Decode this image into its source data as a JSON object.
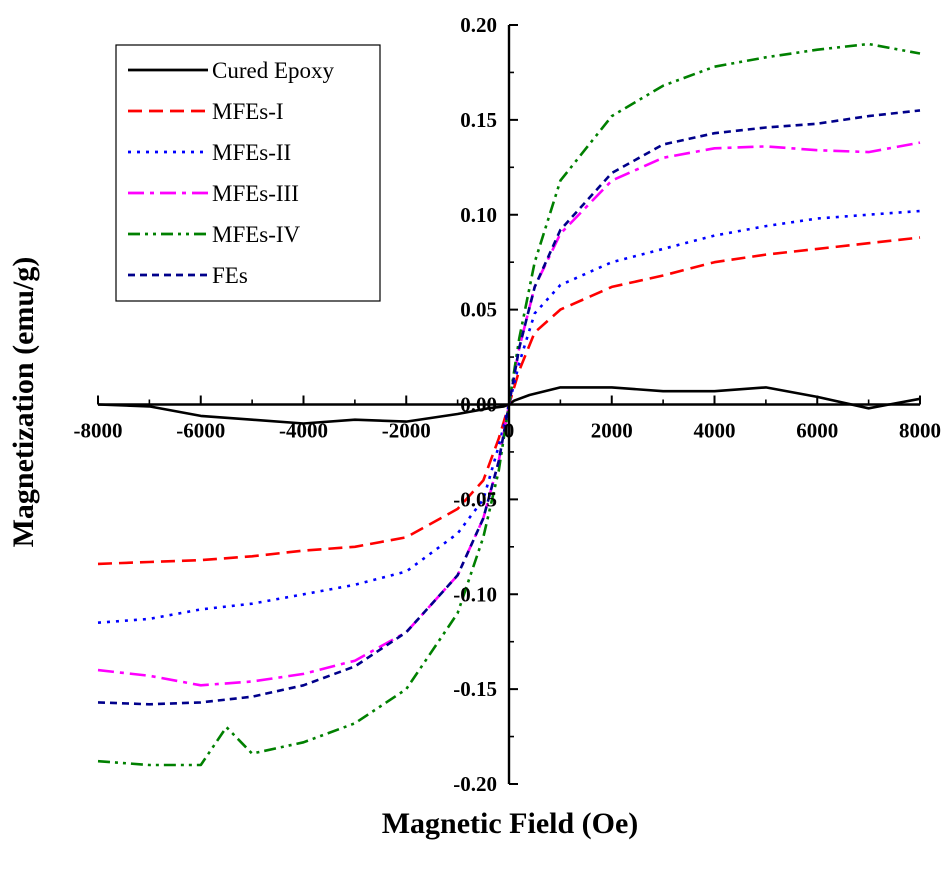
{
  "chart_data": {
    "type": "line",
    "title": "",
    "xlabel": "Magnetic Field (Oe)",
    "ylabel": "Magnetization (emu/g)",
    "xlim": [
      -8000,
      8000
    ],
    "ylim": [
      -0.2,
      0.2
    ],
    "xticks": [
      -8000,
      -6000,
      -4000,
      -2000,
      0,
      2000,
      4000,
      6000,
      8000
    ],
    "xtick_labels": [
      "-8000",
      "-6000",
      "-4000",
      "-2000",
      "0",
      "2000",
      "4000",
      "6000",
      "8000"
    ],
    "yticks": [
      -0.2,
      -0.15,
      -0.1,
      -0.05,
      0.0,
      0.05,
      0.1,
      0.15,
      0.2
    ],
    "ytick_labels": [
      "-0.20",
      "-0.15",
      "-0.10",
      "-0.05",
      "0.00",
      "0.05",
      "0.10",
      "0.15",
      "0.20"
    ],
    "axes_style": "cross at origin",
    "grid": false,
    "legend_position": "top-left",
    "series": [
      {
        "name": "Cured Epoxy",
        "color": "#000000",
        "dash": "solid",
        "x": [
          -8000,
          -7000,
          -6000,
          -5000,
          -4000,
          -3000,
          -2000,
          -1000,
          -400,
          -100,
          0,
          100,
          400,
          1000,
          2000,
          3000,
          4000,
          5000,
          6000,
          7000,
          8000
        ],
        "y": [
          0.0,
          -0.001,
          -0.006,
          -0.008,
          -0.01,
          -0.008,
          -0.009,
          -0.005,
          -0.002,
          -0.001,
          0.0,
          0.002,
          0.005,
          0.009,
          0.009,
          0.007,
          0.007,
          0.009,
          0.004,
          -0.002,
          0.003
        ]
      },
      {
        "name": "MFEs-I",
        "color": "#ff0000",
        "dash": "dashed",
        "x": [
          -8000,
          -7000,
          -6000,
          -5000,
          -4000,
          -3000,
          -2000,
          -1000,
          -500,
          -200,
          0,
          200,
          500,
          1000,
          2000,
          3000,
          4000,
          5000,
          6000,
          7000,
          8000
        ],
        "y": [
          -0.084,
          -0.083,
          -0.082,
          -0.08,
          -0.077,
          -0.075,
          -0.07,
          -0.055,
          -0.04,
          -0.018,
          0.0,
          0.018,
          0.038,
          0.05,
          0.062,
          0.068,
          0.075,
          0.079,
          0.082,
          0.085,
          0.088
        ]
      },
      {
        "name": "MFEs-II",
        "color": "#0000ff",
        "dash": "dotted",
        "x": [
          -8000,
          -7000,
          -6000,
          -5000,
          -4000,
          -3000,
          -2000,
          -1000,
          -500,
          -200,
          0,
          200,
          500,
          1000,
          2000,
          3000,
          4000,
          5000,
          6000,
          7000,
          8000
        ],
        "y": [
          -0.115,
          -0.113,
          -0.108,
          -0.105,
          -0.1,
          -0.095,
          -0.088,
          -0.068,
          -0.05,
          -0.022,
          0.0,
          0.022,
          0.048,
          0.063,
          0.075,
          0.082,
          0.089,
          0.094,
          0.098,
          0.1,
          0.102
        ]
      },
      {
        "name": "MFEs-III",
        "color": "#ff00ff",
        "dash": "dashdot",
        "x": [
          -8000,
          -7000,
          -6000,
          -5000,
          -4000,
          -3000,
          -2000,
          -1000,
          -500,
          -200,
          0,
          200,
          500,
          1000,
          2000,
          3000,
          4000,
          5000,
          6000,
          7000,
          8000
        ],
        "y": [
          -0.14,
          -0.143,
          -0.148,
          -0.146,
          -0.142,
          -0.135,
          -0.12,
          -0.09,
          -0.06,
          -0.03,
          0.0,
          0.03,
          0.062,
          0.09,
          0.118,
          0.13,
          0.135,
          0.136,
          0.134,
          0.133,
          0.138
        ]
      },
      {
        "name": "MFEs-IV",
        "color": "#008000",
        "dash": "dashdotdot",
        "x": [
          -8000,
          -7000,
          -6000,
          -5500,
          -5000,
          -4000,
          -3000,
          -2000,
          -1000,
          -500,
          -200,
          0,
          200,
          500,
          1000,
          2000,
          3000,
          4000,
          5000,
          6000,
          7000,
          8000
        ],
        "y": [
          -0.188,
          -0.19,
          -0.19,
          -0.17,
          -0.184,
          -0.178,
          -0.168,
          -0.15,
          -0.11,
          -0.07,
          -0.035,
          0.0,
          0.035,
          0.075,
          0.118,
          0.152,
          0.168,
          0.178,
          0.183,
          0.187,
          0.19,
          0.185
        ]
      },
      {
        "name": "FEs",
        "color": "#00008b",
        "dash": "shortdash",
        "x": [
          -8000,
          -7000,
          -6000,
          -5000,
          -4000,
          -3000,
          -2000,
          -1000,
          -500,
          -200,
          0,
          200,
          500,
          1000,
          2000,
          3000,
          4000,
          5000,
          6000,
          7000,
          8000
        ],
        "y": [
          -0.157,
          -0.158,
          -0.157,
          -0.154,
          -0.148,
          -0.138,
          -0.12,
          -0.09,
          -0.06,
          -0.03,
          0.0,
          0.03,
          0.062,
          0.092,
          0.122,
          0.137,
          0.143,
          0.146,
          0.148,
          0.152,
          0.155
        ]
      }
    ]
  }
}
